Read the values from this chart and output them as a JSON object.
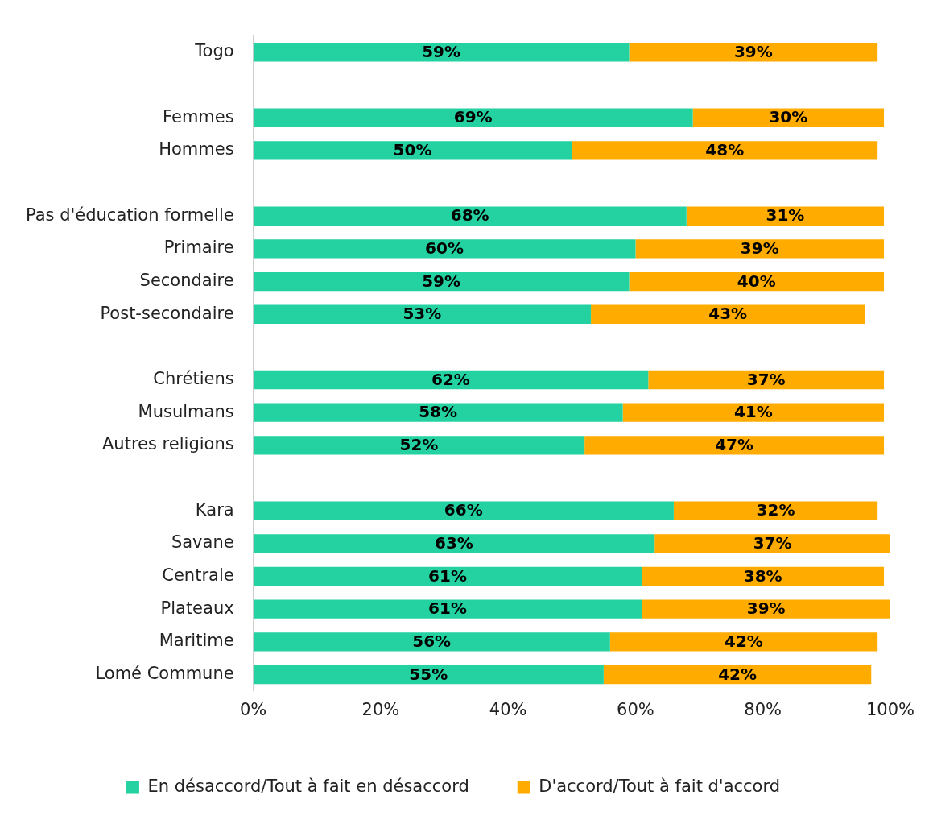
{
  "chart_data": {
    "type": "bar",
    "orientation": "horizontal",
    "stacked": true,
    "categories": [
      "Togo",
      null,
      "Femmes",
      "Hommes",
      null,
      "Pas d'éducation formelle",
      "Primaire",
      "Secondaire",
      "Post-secondaire",
      null,
      "Chrétiens",
      "Musulmans",
      "Autres religions",
      null,
      "Kara",
      "Savane",
      "Centrale",
      "Plateaux",
      "Maritime",
      "Lomé Commune"
    ],
    "series": [
      {
        "name": "En désaccord/Tout à fait en désaccord",
        "color": "#23d1a1",
        "values": [
          59,
          null,
          69,
          50,
          null,
          68,
          60,
          59,
          53,
          null,
          62,
          58,
          52,
          null,
          66,
          63,
          61,
          61,
          56,
          55
        ],
        "value_labels": [
          "59%",
          null,
          "69%",
          "50%",
          null,
          "68%",
          "60%",
          "59%",
          "53%",
          null,
          "62%",
          "58%",
          "52%",
          null,
          "66%",
          "63%",
          "61%",
          "61%",
          "56%",
          "55%"
        ]
      },
      {
        "name": "D'accord/Tout à fait d'accord",
        "color": "#ffab00",
        "values": [
          39,
          null,
          30,
          48,
          null,
          31,
          39,
          40,
          43,
          null,
          37,
          41,
          47,
          null,
          32,
          37,
          38,
          39,
          42,
          42
        ],
        "value_labels": [
          "39%",
          null,
          "30%",
          "48%",
          null,
          "31%",
          "39%",
          "40%",
          "43%",
          null,
          "37%",
          "41%",
          "47%",
          null,
          "32%",
          "37%",
          "38%",
          "39%",
          "42%",
          "42%"
        ]
      }
    ],
    "xlim": [
      0,
      100
    ],
    "xticks": [
      {
        "value": 0,
        "label": "0%"
      },
      {
        "value": 20,
        "label": "20%"
      },
      {
        "value": 40,
        "label": "40%"
      },
      {
        "value": 60,
        "label": "60%"
      },
      {
        "value": 80,
        "label": "80%"
      },
      {
        "value": 100,
        "label": "100%"
      }
    ],
    "grid": false,
    "legend": "bottom"
  }
}
